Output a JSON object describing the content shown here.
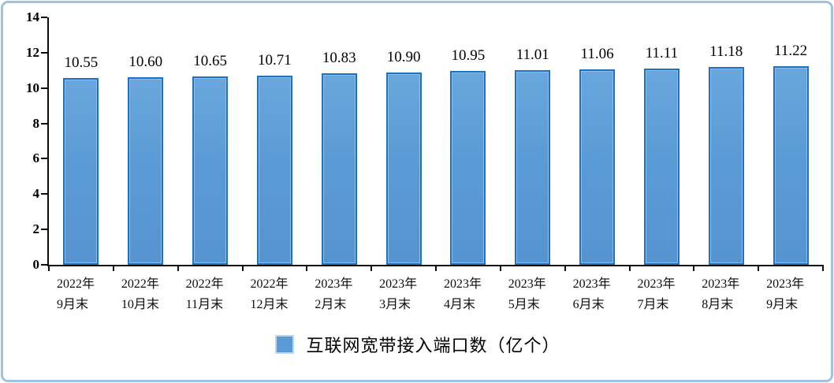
{
  "chart_data": {
    "type": "bar",
    "title": "",
    "legend": "互联网宽带接入端口数（亿个）",
    "legend_position": "bottom",
    "categories": [
      "2022年\n9月末",
      "2022年\n10月末",
      "2022年\n11月末",
      "2022年\n12月末",
      "2023年\n2月末",
      "2023年\n3月末",
      "2023年\n4月末",
      "2023年\n5月末",
      "2023年\n6月末",
      "2023年\n7月末",
      "2023年\n8月末",
      "2023年\n9月末"
    ],
    "values": [
      10.55,
      10.6,
      10.65,
      10.71,
      10.83,
      10.9,
      10.95,
      11.01,
      11.06,
      11.11,
      11.18,
      11.22
    ],
    "value_labels": [
      "10.55",
      "10.60",
      "10.65",
      "10.71",
      "10.83",
      "10.90",
      "10.95",
      "11.01",
      "11.06",
      "11.11",
      "11.18",
      "11.22"
    ],
    "xlabel": "",
    "ylabel": "",
    "ylim": [
      0,
      14
    ],
    "yticks": [
      0,
      2,
      4,
      6,
      8,
      10,
      12,
      14
    ],
    "grid": false,
    "colors": {
      "bar_fill": "#5b9bd5",
      "bar_border": "#1f72c0",
      "frame_border": "#9CC2E5",
      "axis": "#0d0d0d",
      "text": "#000000",
      "legend_swatch_border": "#bdd7ee"
    }
  }
}
